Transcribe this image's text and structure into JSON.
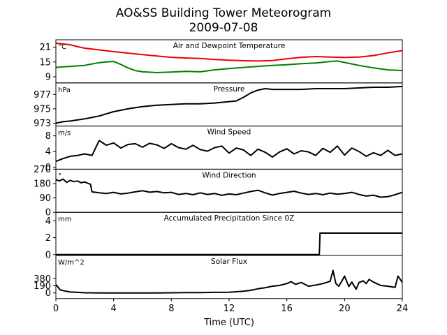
{
  "title_line1": "AO&SS Building Tower Meteorogram",
  "title_line2": "2009-07-08",
  "chart_data": {
    "type": "line",
    "title": "AO&SS Building Tower Meteorogram",
    "subtitle": "2009-07-08",
    "xlabel": "Time (UTC)",
    "xlim": [
      0,
      24
    ],
    "xticks": [
      0,
      4,
      8,
      12,
      16,
      20,
      24
    ],
    "panels": [
      {
        "title": "Air and Dewpoint Temperature",
        "unit": "°C",
        "ylim": [
          6.5,
          24
        ],
        "yticks": [
          9,
          15,
          21
        ],
        "series": [
          {
            "color": "#ee0000",
            "x": [
              0,
              0.5,
              1,
              1.5,
              2,
              3,
              4,
              5,
              6,
              7,
              8,
              9,
              10,
              11,
              12,
              13,
              14,
              15,
              16,
              17,
              18,
              19,
              20,
              21,
              22,
              23,
              24
            ],
            "y": [
              22.6,
              22.3,
              22.0,
              21.2,
              20.6,
              19.9,
              19.2,
              18.6,
              18.0,
              17.4,
              16.9,
              16.6,
              16.4,
              16.0,
              15.7,
              15.5,
              15.4,
              15.6,
              16.3,
              16.9,
              17.2,
              17.0,
              16.8,
              17.0,
              17.6,
              18.7,
              19.6
            ]
          },
          {
            "color": "#008000",
            "x": [
              0,
              0.5,
              1,
              1.5,
              2,
              2.5,
              3,
              3.5,
              4,
              4.5,
              5,
              5.5,
              6,
              7,
              8,
              9,
              10,
              11,
              12,
              13,
              14,
              15,
              16,
              17,
              18,
              19,
              19.5,
              20,
              21,
              22,
              23,
              24
            ],
            "y": [
              12.8,
              13.0,
              13.2,
              13.4,
              13.6,
              14.2,
              14.7,
              15.0,
              15.2,
              14.0,
              12.6,
              11.5,
              11.0,
              10.7,
              10.9,
              11.2,
              11.0,
              11.8,
              12.3,
              12.8,
              13.2,
              13.6,
              13.9,
              14.3,
              14.6,
              15.2,
              15.4,
              14.8,
              13.6,
              12.6,
              11.8,
              11.5
            ]
          }
        ]
      },
      {
        "title": "Pressure",
        "unit": "hPa",
        "ylim": [
          972.6,
          978.6
        ],
        "yticks": [
          973,
          975,
          977
        ],
        "series": [
          {
            "color": "#000000",
            "x": [
              0,
              0.5,
              1,
              2,
              3,
              4,
              5,
              6,
              7,
              8,
              9,
              10,
              11,
              12,
              12.5,
              13,
              13.5,
              14,
              14.5,
              15,
              16,
              17,
              18,
              19,
              20,
              21,
              22,
              23,
              24
            ],
            "y": [
              973.0,
              973.2,
              973.3,
              973.6,
              974.0,
              974.6,
              975.0,
              975.3,
              975.5,
              975.6,
              975.7,
              975.7,
              975.8,
              976.0,
              976.1,
              976.6,
              977.2,
              977.6,
              977.8,
              977.7,
              977.7,
              977.7,
              977.8,
              977.8,
              977.8,
              977.9,
              978.0,
              978.0,
              978.1
            ]
          }
        ]
      },
      {
        "title": "Wind Speed",
        "unit": "m/s",
        "ylim": [
          -0.5,
          10.5
        ],
        "yticks": [
          0,
          4,
          8
        ],
        "series": [
          {
            "color": "#000000",
            "x": [
              0,
              0.5,
              1,
              1.5,
              2,
              2.5,
              3,
              3.5,
              4,
              4.5,
              5,
              5.5,
              6,
              6.5,
              7,
              7.5,
              8,
              8.5,
              9,
              9.5,
              10,
              10.5,
              11,
              11.5,
              12,
              12.5,
              13,
              13.5,
              14,
              14.5,
              15,
              15.5,
              16,
              16.5,
              17,
              17.5,
              18,
              18.5,
              19,
              19.5,
              20,
              20.5,
              21,
              21.5,
              22,
              22.5,
              23,
              23.5,
              24
            ],
            "y": [
              1.5,
              2.2,
              2.8,
              3.0,
              3.4,
              3.0,
              6.8,
              5.6,
              6.2,
              4.9,
              5.8,
              6.0,
              5.1,
              6.1,
              5.7,
              4.8,
              6.0,
              5.0,
              4.6,
              5.6,
              4.5,
              4.1,
              5.0,
              5.4,
              3.6,
              4.9,
              4.4,
              3.0,
              4.6,
              3.8,
              2.6,
              3.9,
              4.7,
              3.4,
              4.2,
              3.9,
              3.0,
              4.8,
              3.8,
              5.4,
              3.1,
              4.9,
              4.0,
              2.8,
              3.7,
              3.0,
              4.3,
              3.0,
              3.4
            ]
          }
        ]
      },
      {
        "title": "Wind Direction",
        "unit": "°",
        "ylim": [
          0,
          270
        ],
        "yticks": [
          0,
          90,
          180,
          270
        ],
        "series": [
          {
            "color": "#000000",
            "x": [
              0,
              0.25,
              0.5,
              0.75,
              1,
              1.25,
              1.5,
              1.75,
              2,
              2.25,
              2.4,
              2.5,
              3,
              3.5,
              4,
              4.5,
              5,
              5.5,
              6,
              6.5,
              7,
              7.5,
              8,
              8.5,
              9,
              9.5,
              10,
              10.5,
              11,
              11.5,
              12,
              12.5,
              13,
              13.5,
              14,
              14.5,
              15,
              15.5,
              16,
              16.5,
              17,
              17.5,
              18,
              18.5,
              19,
              19.5,
              20,
              20.5,
              21,
              21.5,
              22,
              22.5,
              23,
              23.5,
              24
            ],
            "y": [
              205,
              196,
              208,
              188,
              200,
              192,
              196,
              185,
              190,
              180,
              176,
              128,
              122,
              118,
              125,
              115,
              120,
              128,
              135,
              126,
              130,
              122,
              125,
              112,
              118,
              110,
              122,
              112,
              118,
              106,
              115,
              110,
              120,
              130,
              138,
              122,
              108,
              118,
              125,
              132,
              120,
              112,
              118,
              110,
              120,
              113,
              118,
              125,
              112,
              102,
              107,
              95,
              98,
              110,
              125
            ]
          }
        ]
      },
      {
        "title": "Accumulated Precipitation Since 0Z",
        "unit": "mm",
        "ylim": [
          -0.1,
          5.0
        ],
        "yticks": [
          0,
          2,
          4
        ],
        "series": [
          {
            "color": "#000000",
            "x": [
              0,
              18.25,
              18.3,
              24
            ],
            "y": [
              0,
              0,
              2.54,
              2.54
            ]
          }
        ]
      },
      {
        "title": "Solar Flux",
        "unit": "W/m^2",
        "ylim": [
          -150,
          1000
        ],
        "yticks": [
          0,
          190,
          380
        ],
        "series": [
          {
            "color": "#000000",
            "x": [
              0,
              0.1,
              0.3,
              0.6,
              1,
              1.5,
              2,
              3,
              4,
              5,
              6,
              7,
              8,
              9,
              10,
              11,
              12,
              13,
              13.5,
              14,
              14.5,
              15,
              15.5,
              16,
              16.3,
              16.6,
              17,
              17.5,
              18,
              18.5,
              19,
              19.2,
              19.4,
              19.6,
              19.8,
              20,
              20.3,
              20.5,
              20.8,
              21,
              21.3,
              21.5,
              21.7,
              22,
              22.5,
              23,
              23.5,
              23.7,
              24
            ],
            "y": [
              220,
              180,
              80,
              55,
              25,
              15,
              5,
              0,
              0,
              0,
              0,
              0,
              5,
              8,
              10,
              15,
              20,
              45,
              70,
              110,
              140,
              180,
              200,
              250,
              300,
              230,
              280,
              180,
              210,
              250,
              310,
              600,
              250,
              180,
              310,
              450,
              170,
              290,
              100,
              280,
              320,
              250,
              360,
              290,
              200,
              180,
              150,
              450,
              280
            ]
          }
        ]
      }
    ]
  }
}
